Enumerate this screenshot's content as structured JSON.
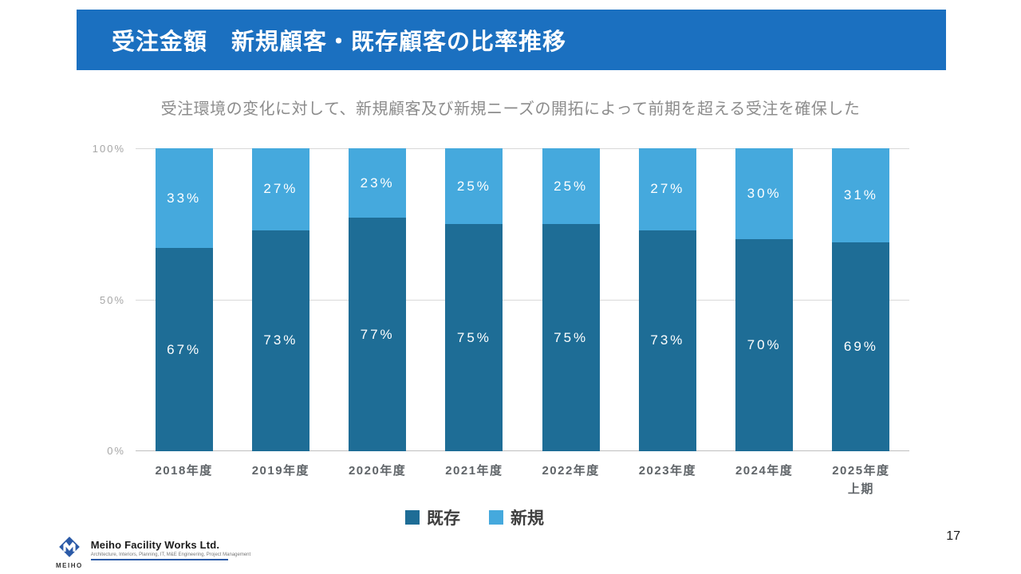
{
  "slide": {
    "title": "受注金額　新規顧客・既存顧客の比率推移",
    "subtitle": "受注環境の変化に対して、新規顧客及び新規ニーズの開拓によって前期を超える受注を確保した",
    "page_number": "17"
  },
  "chart_data": {
    "type": "bar",
    "variant": "stacked-100-percent",
    "title": "受注金額　新規顧客・既存顧客の比率推移",
    "unit": "%",
    "categories": [
      "2018年度",
      "2019年度",
      "2020年度",
      "2021年度",
      "2022年度",
      "2023年度",
      "2024年度",
      "2025年度\n上期"
    ],
    "series": [
      {
        "name": "既存",
        "color": "#1e6d96",
        "values": [
          67,
          73,
          77,
          75,
          75,
          73,
          70,
          69
        ]
      },
      {
        "name": "新規",
        "color": "#45a9dd",
        "values": [
          33,
          27,
          23,
          25,
          25,
          27,
          30,
          31
        ]
      }
    ],
    "ylim": [
      0,
      100
    ],
    "y_ticks": [
      "100%",
      "50%",
      "0%"
    ],
    "grid": "horizontal",
    "legend_position": "bottom"
  },
  "footer": {
    "logo_text": "MEIHO",
    "company_name": "Meiho Facility Works Ltd.",
    "company_tagline": "Architecture, Interiors, Planning, IT, M&E Engineering, Project Management"
  }
}
